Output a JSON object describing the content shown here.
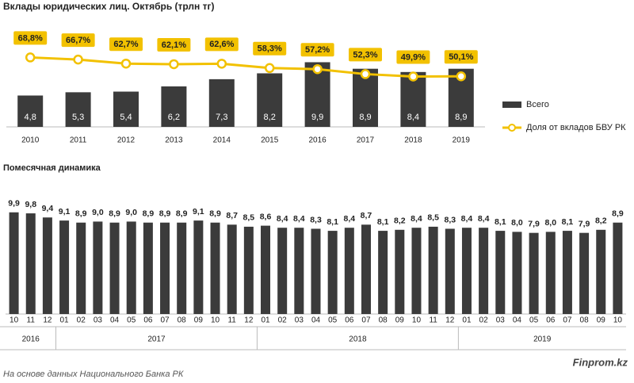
{
  "chart_data": [
    {
      "type": "bar",
      "title": "Вклады юридических лиц. Октябрь (трлн тг)",
      "categories": [
        "2010",
        "2011",
        "2012",
        "2013",
        "2014",
        "2015",
        "2016",
        "2017",
        "2018",
        "2019"
      ],
      "ylim": [
        0,
        17
      ],
      "y2lim": [
        0,
        110
      ],
      "legend": "right",
      "series": [
        {
          "name": "Всего",
          "color": "#3b3b3b",
          "values": [
            4.8,
            5.3,
            5.4,
            6.2,
            7.3,
            8.2,
            9.9,
            8.9,
            8.4,
            8.9
          ],
          "value_labels": [
            "4,8",
            "5,3",
            "5,4",
            "6,2",
            "7,3",
            "8,2",
            "9,9",
            "8,9",
            "8,4",
            "8,9"
          ]
        },
        {
          "name": "Доля от вкладов БВУ РК",
          "type": "line",
          "axis": "y2",
          "color": "#f2c100",
          "values": [
            68.8,
            66.7,
            62.7,
            62.1,
            62.6,
            58.3,
            57.2,
            52.3,
            49.9,
            50.1
          ],
          "value_labels": [
            "68,8%",
            "66,7%",
            "62,7%",
            "62,1%",
            "62,6%",
            "58,3%",
            "57,2%",
            "52,3%",
            "49,9%",
            "50,1%"
          ]
        }
      ]
    },
    {
      "type": "bar",
      "title": "Помесячная динамика",
      "color": "#3b3b3b",
      "ylim": [
        0,
        10.5
      ],
      "categories": [
        "10",
        "11",
        "12",
        "01",
        "02",
        "03",
        "04",
        "05",
        "06",
        "07",
        "08",
        "09",
        "10",
        "11",
        "12",
        "01",
        "02",
        "03",
        "04",
        "05",
        "06",
        "07",
        "08",
        "09",
        "10",
        "11",
        "12",
        "01",
        "02",
        "03",
        "04",
        "05",
        "06",
        "07",
        "08",
        "09",
        "10"
      ],
      "values": [
        9.9,
        9.8,
        9.4,
        9.1,
        8.9,
        9.0,
        8.9,
        9.0,
        8.9,
        8.9,
        8.9,
        9.1,
        8.9,
        8.7,
        8.5,
        8.6,
        8.4,
        8.4,
        8.3,
        8.1,
        8.4,
        8.7,
        8.1,
        8.2,
        8.4,
        8.5,
        8.3,
        8.4,
        8.4,
        8.1,
        8.0,
        7.9,
        8.0,
        8.1,
        7.9,
        8.2,
        8.9
      ],
      "value_labels": [
        "9,9",
        "9,8",
        "9,4",
        "9,1",
        "8,9",
        "9,0",
        "8,9",
        "9,0",
        "8,9",
        "8,9",
        "8,9",
        "9,1",
        "8,9",
        "8,7",
        "8,5",
        "8,6",
        "8,4",
        "8,4",
        "8,3",
        "8,1",
        "8,4",
        "8,7",
        "8,1",
        "8,2",
        "8,4",
        "8,5",
        "8,3",
        "8,4",
        "8,4",
        "8,1",
        "8,0",
        "7,9",
        "8,0",
        "8,1",
        "7,9",
        "8,2",
        "8,9"
      ],
      "groups": [
        "2016",
        "2017",
        "2018",
        "2019"
      ]
    }
  ],
  "source": "На основе данных Национального  Банка РК",
  "brand": "Finprom.kz"
}
